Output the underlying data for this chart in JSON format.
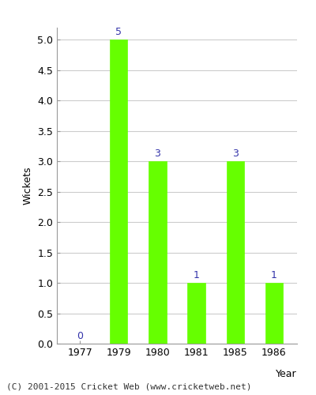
{
  "categories": [
    "1977",
    "1979",
    "1980",
    "1981",
    "1985",
    "1986"
  ],
  "values": [
    0,
    5,
    3,
    1,
    3,
    1
  ],
  "bar_color": "#66ff00",
  "bar_edge_color": "#66ff00",
  "xlabel": "Year",
  "ylabel": "Wickets",
  "ylim": [
    0,
    5.2
  ],
  "yticks": [
    0.0,
    0.5,
    1.0,
    1.5,
    2.0,
    2.5,
    3.0,
    3.5,
    4.0,
    4.5,
    5.0
  ],
  "label_color": "#3333aa",
  "label_fontsize": 9,
  "axis_label_fontsize": 9,
  "tick_fontsize": 9,
  "background_color": "#ffffff",
  "grid_color": "#cccccc",
  "caption": "(C) 2001-2015 Cricket Web (www.cricketweb.net)",
  "caption_fontsize": 8
}
